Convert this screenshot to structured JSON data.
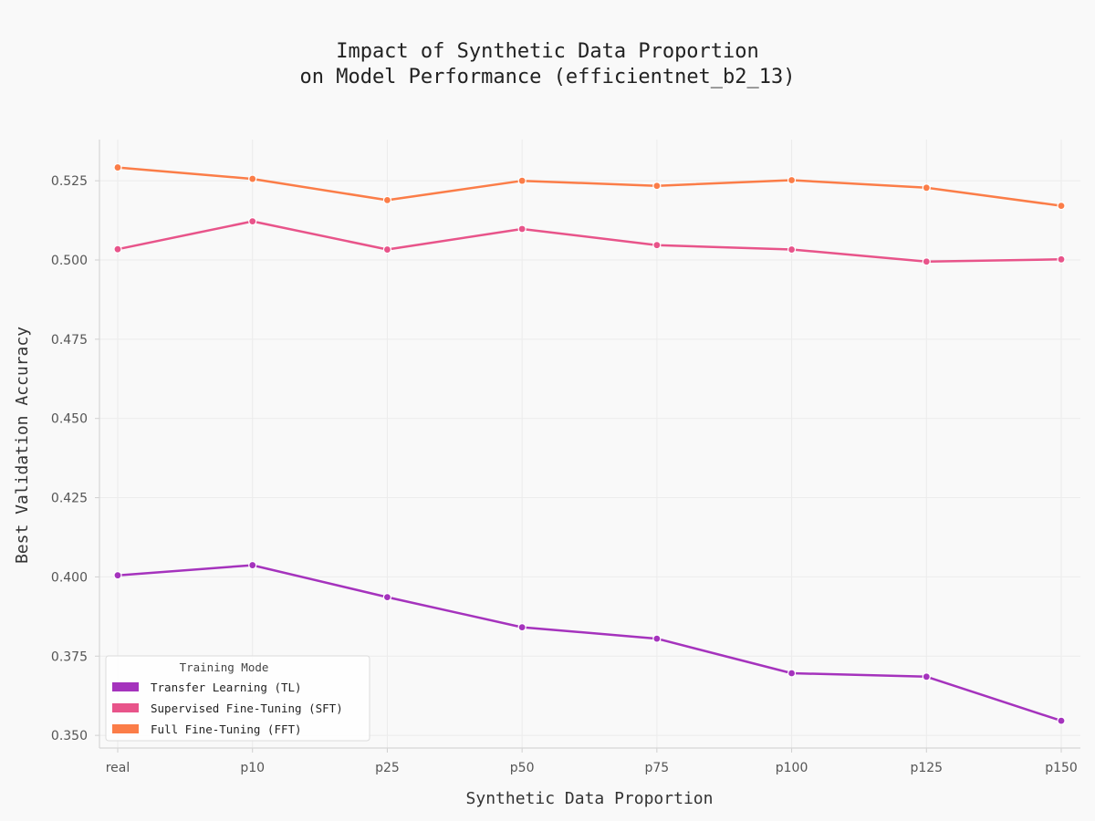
{
  "chart_data": {
    "type": "line",
    "title": [
      "Impact of Synthetic Data Proportion",
      "on Model Performance (efficientnet_b2_13)"
    ],
    "xlabel": "Synthetic Data Proportion",
    "ylabel": "Best Validation Accuracy",
    "categories": [
      "real",
      "p10",
      "p25",
      "p50",
      "p75",
      "p100",
      "p125",
      "p150"
    ],
    "ylim": [
      0.346,
      0.538
    ],
    "yticks": [
      "0.350",
      "0.375",
      "0.400",
      "0.425",
      "0.450",
      "0.475",
      "0.500",
      "0.525"
    ],
    "grid": true,
    "legend": {
      "title": "Training Mode",
      "position": "lower-left"
    },
    "series": [
      {
        "name": "Transfer Learning (TL)",
        "color": "#a533bd",
        "values": [
          0.4005,
          0.4037,
          0.3936,
          0.3841,
          0.3805,
          0.3696,
          0.3685,
          0.3546
        ]
      },
      {
        "name": "Supervised Fine-Tuning (SFT)",
        "color": "#e8548a",
        "values": [
          0.5034,
          0.5122,
          0.5033,
          0.5098,
          0.5047,
          0.5033,
          0.4995,
          0.5002
        ]
      },
      {
        "name": "Full Fine-Tuning (FFT)",
        "color": "#fb7d48",
        "values": [
          0.5292,
          0.5256,
          0.5189,
          0.525,
          0.5234,
          0.5252,
          0.5228,
          0.5171
        ]
      }
    ]
  }
}
